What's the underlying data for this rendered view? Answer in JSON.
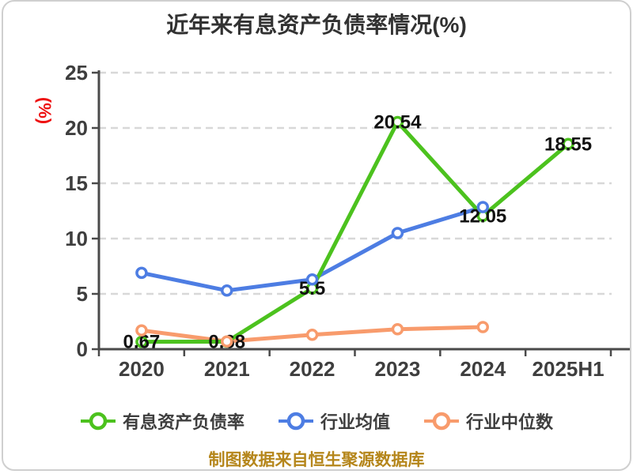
{
  "card": {
    "footer_note": "制图数据来自恒生聚源数据库"
  },
  "chart_data": {
    "type": "line",
    "title": "近年来有息资产负债率情况(%)",
    "ylabel": "(%)",
    "xlabel": "",
    "ylim": [
      0,
      25
    ],
    "yticks": [
      0,
      5,
      10,
      15,
      20,
      25
    ],
    "grid": "horizontal-dashed",
    "legend_position": "bottom",
    "categories": [
      "2020",
      "2021",
      "2022",
      "2023",
      "2024",
      "2025H1"
    ],
    "series": [
      {
        "name": "有息资产负债率",
        "color": "#4cc21e",
        "values": [
          0.67,
          0.68,
          5.5,
          20.54,
          12.05,
          18.55
        ],
        "point_labels": [
          "0.67",
          "0.68",
          "5.5",
          "20.54",
          "12.05",
          "18.55"
        ]
      },
      {
        "name": "行业均值",
        "color": "#4d7de3",
        "values": [
          6.9,
          5.3,
          6.3,
          10.5,
          12.85,
          null
        ],
        "point_labels": []
      },
      {
        "name": "行业中位数",
        "color": "#f89b6c",
        "values": [
          1.7,
          0.7,
          1.3,
          1.8,
          2.0,
          null
        ],
        "point_labels": []
      }
    ],
    "colors": {
      "axis": "#4a4a4a",
      "gridline": "#d8d8d8",
      "tick_label": "#3e3e3e",
      "data_label": "#111111",
      "title": "#323232",
      "ylabel": "#ee1111",
      "footer": "#b5861b"
    }
  }
}
